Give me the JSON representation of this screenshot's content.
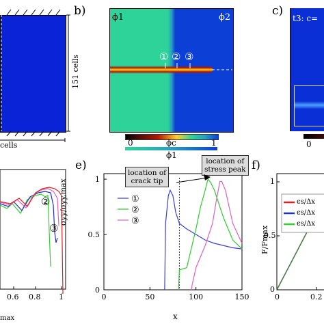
{
  "panels": {
    "a": {
      "height_label": "151 cells",
      "width_label": "cells"
    },
    "b": {
      "label": "b)",
      "phi_left": "ϕ1",
      "phi_right": "ϕ2",
      "markers": [
        "①",
        "②",
        "③"
      ],
      "colorbar": {
        "ticks": [
          "0",
          "ϕc",
          "1"
        ],
        "title": "ϕ1"
      }
    },
    "c": {
      "label": "c)",
      "title": "t3: c=",
      "colorbar_tick": "0"
    },
    "d": {
      "markers": [
        "②",
        "③"
      ],
      "x_ticks": [
        "0.6",
        "0.8",
        "1"
      ],
      "xlabel": "max"
    },
    "e": {
      "label": "e)",
      "annotations": [
        "location of\ncrack tip",
        "location of\nstress peak"
      ],
      "colors": {
        "s1": "#3b3bd8",
        "s2": "#2ecc2e",
        "s3": "#e060c0"
      }
    },
    "f": {
      "label": "f)",
      "ylabel": "F/Fmax",
      "y_ticks": [
        "1",
        "0.5",
        "0"
      ],
      "x_ticks": [
        "0",
        "0.2"
      ],
      "legend": [
        "ϵs/Δx",
        "ϵs/Δx",
        "ϵs/Δx"
      ],
      "legend_colors": [
        "#e02020",
        "#2030c0",
        "#30d030"
      ]
    }
  },
  "chart_data": {
    "type": "line",
    "xlabel": "x",
    "ylabel": "σyy/σyy,max",
    "xlim": [
      0,
      150
    ],
    "ylim": [
      0,
      1.05
    ],
    "x_ticks": [
      "0",
      "50",
      "100",
      "150"
    ],
    "y_ticks": [
      "0",
      "0.5",
      "1"
    ],
    "series": [
      {
        "name": "①",
        "x": [
          66,
          67,
          70,
          72,
          75,
          78,
          82,
          90,
          100,
          110,
          120,
          130,
          140,
          150
        ],
        "y": [
          0,
          0.6,
          0.85,
          0.9,
          0.85,
          0.7,
          0.6,
          0.55,
          0.5,
          0.45,
          0.42,
          0.4,
          0.38,
          0.37
        ]
      },
      {
        "name": "②",
        "x": [
          81,
          82,
          90,
          100,
          105,
          110,
          113,
          116,
          120,
          130,
          140,
          150
        ],
        "y": [
          0,
          0.18,
          0.2,
          0.55,
          0.75,
          0.9,
          1.0,
          0.97,
          0.9,
          0.65,
          0.45,
          0.37
        ]
      },
      {
        "name": "③",
        "x": [
          95,
          96,
          100,
          110,
          118,
          122,
          126,
          128,
          132,
          140,
          150
        ],
        "y": [
          0,
          0.05,
          0.2,
          0.4,
          0.6,
          0.8,
          0.98,
          0.98,
          0.9,
          0.6,
          0.42
        ]
      }
    ],
    "crack_tip_x": 82,
    "stress_peak_x": 114
  }
}
